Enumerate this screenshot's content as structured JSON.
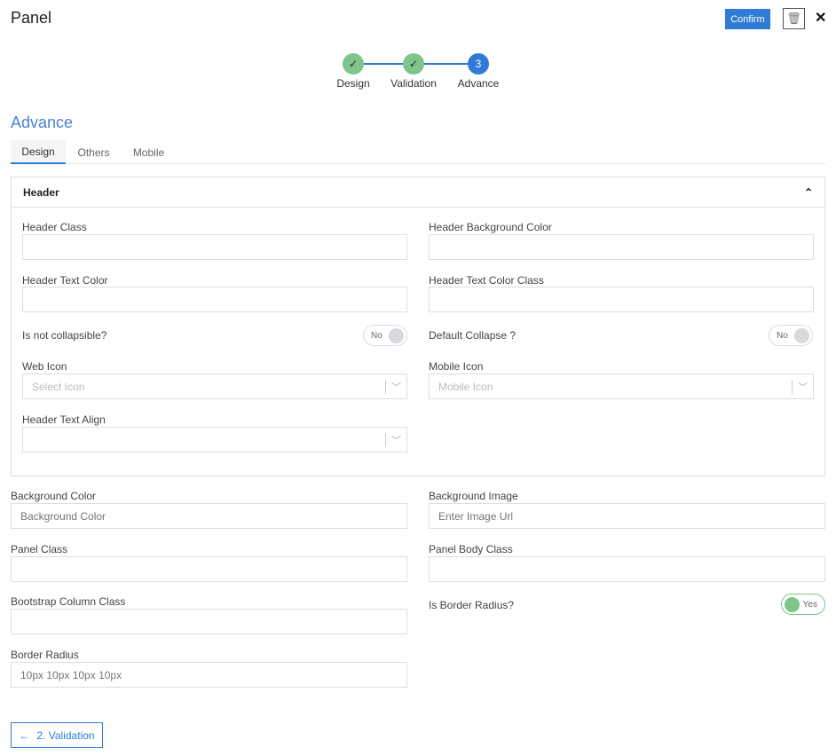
{
  "header": {
    "title": "Panel",
    "confirm_label": "Confirm",
    "trash_icon": "trash-icon",
    "close_label": "✕"
  },
  "stepper": {
    "steps": [
      {
        "label": "Design",
        "status": "done",
        "mark": "✓"
      },
      {
        "label": "Validation",
        "status": "done",
        "mark": "✓"
      },
      {
        "label": "Advance",
        "status": "current",
        "mark": "3"
      }
    ]
  },
  "section_title": "Advance",
  "tabs": [
    {
      "label": "Design",
      "active": true
    },
    {
      "label": "Others"
    },
    {
      "label": "Mobile"
    }
  ],
  "header_card": {
    "title": "Header",
    "collapse_icon": "⌃",
    "fields": {
      "header_class": {
        "label": "Header Class",
        "value": ""
      },
      "header_bg": {
        "label": "Header Background Color",
        "value": ""
      },
      "header_text_color": {
        "label": "Header Text Color",
        "value": ""
      },
      "header_text_color_class": {
        "label": "Header Text Color Class",
        "value": ""
      },
      "not_collapsible": {
        "label": "Is not collapsible?",
        "toggle": "No"
      },
      "default_collapse": {
        "label": "Default Collapse ?",
        "toggle": "No"
      },
      "web_icon": {
        "label": "Web Icon",
        "placeholder": "Select Icon"
      },
      "mobile_icon": {
        "label": "Mobile Icon",
        "placeholder": "Mobile Icon"
      },
      "text_align": {
        "label": "Header Text Align",
        "placeholder": ""
      }
    }
  },
  "fields": {
    "bg_color": {
      "label": "Background Color",
      "placeholder": "Background Color"
    },
    "bg_image": {
      "label": "Background Image",
      "placeholder": "Enter Image Url"
    },
    "panel_class": {
      "label": "Panel Class",
      "value": ""
    },
    "panel_body_class": {
      "label": "Panel Body Class",
      "value": ""
    },
    "bootstrap_col": {
      "label": "Bootstrap Column Class",
      "value": ""
    },
    "border_radius_toggle": {
      "label": "Is Border Radius?",
      "toggle": "Yes"
    },
    "border_radius": {
      "label": "Border Radius",
      "placeholder": "10px 10px 10px 10px"
    }
  },
  "back_button": {
    "label": "2. Validation",
    "icon": "←"
  },
  "colors": {
    "primary": "#2f7bd6",
    "success": "#7ec58a"
  }
}
